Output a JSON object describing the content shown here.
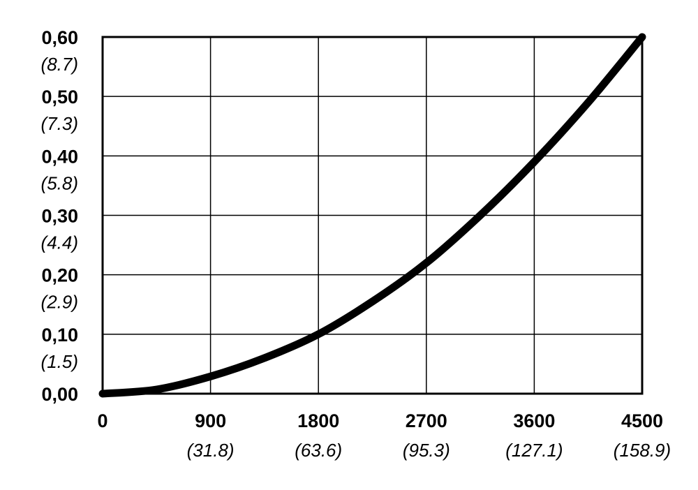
{
  "chart_data": {
    "type": "line",
    "title": "",
    "xlabel": "",
    "ylabel": "",
    "xlim": [
      0,
      4500
    ],
    "ylim": [
      0,
      0.6
    ],
    "grid": true,
    "x_ticks": [
      {
        "value": 0,
        "label": "0",
        "sub": ""
      },
      {
        "value": 900,
        "label": "900",
        "sub": "(31.8)"
      },
      {
        "value": 1800,
        "label": "1800",
        "sub": "(63.6)"
      },
      {
        "value": 2700,
        "label": "2700",
        "sub": "(95.3)"
      },
      {
        "value": 3600,
        "label": "3600",
        "sub": "(127.1)"
      },
      {
        "value": 4500,
        "label": "4500",
        "sub": "(158.9)"
      }
    ],
    "y_ticks": [
      {
        "value": 0.0,
        "label": "0,00",
        "sub": ""
      },
      {
        "value": 0.1,
        "label": "0,10",
        "sub": "(1.5)"
      },
      {
        "value": 0.2,
        "label": "0,20",
        "sub": "(2.9)"
      },
      {
        "value": 0.3,
        "label": "0,30",
        "sub": "(4.4)"
      },
      {
        "value": 0.4,
        "label": "0,40",
        "sub": "(5.8)"
      },
      {
        "value": 0.5,
        "label": "0,50",
        "sub": "(7.3)"
      },
      {
        "value": 0.6,
        "label": "0,60",
        "sub": "(8.7)"
      }
    ],
    "series": [
      {
        "x": [
          0,
          450,
          900,
          1350,
          1800,
          2250,
          2700,
          3150,
          3600,
          4050,
          4500
        ],
        "y": [
          0.0,
          0.007,
          0.029,
          0.06,
          0.1,
          0.155,
          0.22,
          0.3,
          0.39,
          0.49,
          0.6
        ]
      }
    ],
    "line_color": "#000000",
    "grid_color": "#000000"
  }
}
